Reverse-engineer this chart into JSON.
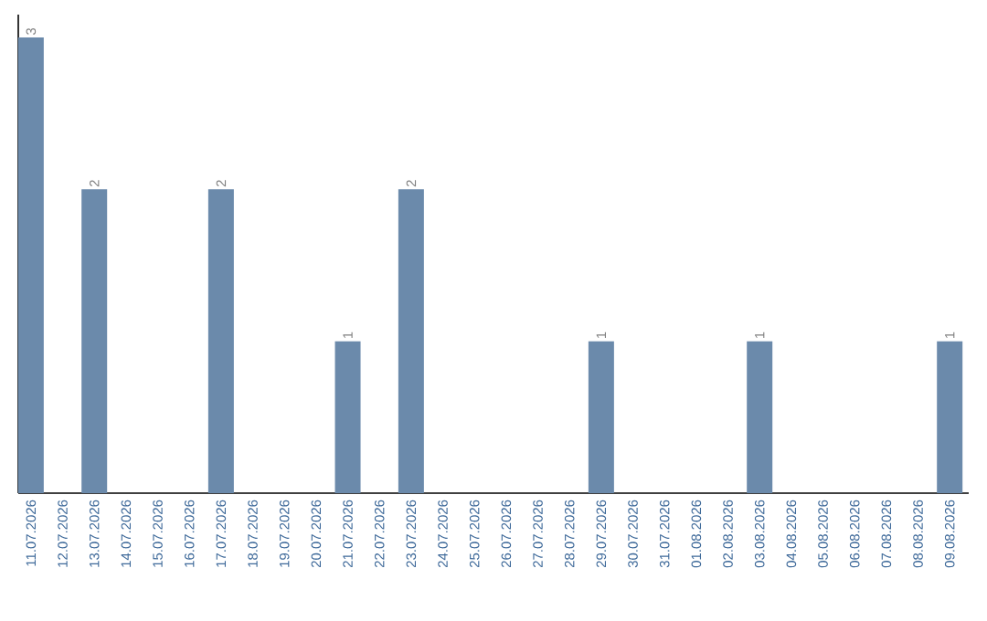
{
  "chart_data": {
    "type": "bar",
    "categories": [
      "11.07.2026",
      "12.07.2026",
      "13.07.2026",
      "14.07.2026",
      "15.07.2026",
      "16.07.2026",
      "17.07.2026",
      "18.07.2026",
      "19.07.2026",
      "20.07.2026",
      "21.07.2026",
      "22.07.2026",
      "23.07.2026",
      "24.07.2026",
      "25.07.2026",
      "26.07.2026",
      "27.07.2026",
      "28.07.2026",
      "29.07.2026",
      "30.07.2026",
      "31.07.2026",
      "01.08.2026",
      "02.08.2026",
      "03.08.2026",
      "04.08.2026",
      "05.08.2026",
      "06.08.2026",
      "07.08.2026",
      "08.08.2026",
      "09.08.2026"
    ],
    "values": [
      3,
      0,
      2,
      0,
      0,
      0,
      2,
      0,
      0,
      0,
      1,
      0,
      2,
      0,
      0,
      0,
      0,
      0,
      1,
      0,
      0,
      0,
      0,
      1,
      0,
      0,
      0,
      0,
      0,
      1
    ],
    "value_labels": [
      "3",
      null,
      "2",
      null,
      null,
      null,
      "2",
      null,
      null,
      null,
      "1",
      null,
      "2",
      null,
      null,
      null,
      null,
      null,
      "1",
      null,
      null,
      null,
      null,
      "1",
      null,
      null,
      null,
      null,
      null,
      "1"
    ],
    "color": "#6b8aab",
    "ylim": [
      0,
      3.15
    ],
    "tick_labels": "x",
    "grid": false
  }
}
